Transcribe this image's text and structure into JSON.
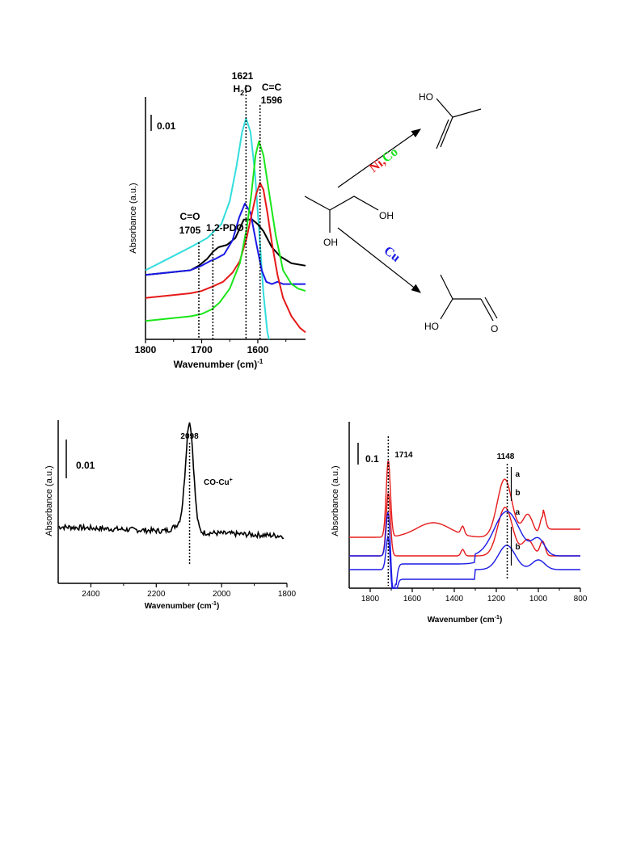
{
  "chart_data": [
    {
      "type": "line",
      "xlabel": "Wavenumber (cm)",
      "xlabel_sup": "-1",
      "ylabel": "Absorbance (a.u.)",
      "xlim": [
        1800,
        1515
      ],
      "xticks": [
        "1800",
        "1700",
        "1600"
      ],
      "scale_bar": "0.01",
      "annotations": [
        {
          "x": 1705,
          "line1": "C=O",
          "line2": "1705"
        },
        {
          "x": 1680,
          "line1": "1,2-PDO",
          "line2": ""
        },
        {
          "x": 1621,
          "line1": "1621",
          "line2": "H",
          "sub": "2",
          "tail": "O"
        },
        {
          "x": 1596,
          "line1": "C=C",
          "line2": "1596"
        }
      ],
      "series": [
        {
          "color": "#33dddd",
          "x": [
            1800,
            1760,
            1720,
            1690,
            1665,
            1650,
            1638,
            1628,
            1621,
            1613,
            1605,
            1597,
            1590,
            1583,
            1580
          ],
          "y": [
            0.3,
            0.35,
            0.4,
            0.44,
            0.5,
            0.6,
            0.75,
            0.9,
            0.96,
            0.9,
            0.72,
            0.45,
            0.2,
            0.03,
            0.0
          ]
        },
        {
          "color": "#000000",
          "x": [
            1800,
            1760,
            1720,
            1705,
            1690,
            1680,
            1670,
            1655,
            1640,
            1625,
            1610,
            1600,
            1590,
            1575,
            1560,
            1540,
            1515
          ],
          "y": [
            0.28,
            0.29,
            0.3,
            0.32,
            0.35,
            0.38,
            0.4,
            0.41,
            0.44,
            0.52,
            0.52,
            0.5,
            0.47,
            0.4,
            0.36,
            0.33,
            0.32
          ]
        },
        {
          "color": "#1a1ae6",
          "x": [
            1800,
            1760,
            1720,
            1700,
            1685,
            1675,
            1660,
            1645,
            1633,
            1623,
            1613,
            1603,
            1593,
            1585,
            1575,
            1565,
            1555,
            1545,
            1530,
            1515
          ],
          "y": [
            0.28,
            0.29,
            0.3,
            0.32,
            0.34,
            0.35,
            0.37,
            0.43,
            0.53,
            0.59,
            0.55,
            0.42,
            0.3,
            0.25,
            0.24,
            0.25,
            0.24,
            0.24,
            0.24,
            0.24
          ]
        },
        {
          "color": "#e61a1a",
          "x": [
            1800,
            1760,
            1720,
            1700,
            1680,
            1662,
            1645,
            1632,
            1620,
            1612,
            1603,
            1596,
            1590,
            1583,
            1575,
            1565,
            1555,
            1540,
            1525,
            1515
          ],
          "y": [
            0.18,
            0.19,
            0.2,
            0.21,
            0.23,
            0.25,
            0.29,
            0.34,
            0.44,
            0.53,
            0.63,
            0.68,
            0.65,
            0.55,
            0.42,
            0.28,
            0.18,
            0.1,
            0.05,
            0.03
          ]
        },
        {
          "color": "#1ae61a",
          "x": [
            1800,
            1760,
            1720,
            1700,
            1682,
            1668,
            1650,
            1632,
            1620,
            1612,
            1604,
            1598,
            1590,
            1580,
            1568,
            1555,
            1540,
            1528,
            1515
          ],
          "y": [
            0.08,
            0.09,
            0.1,
            0.11,
            0.13,
            0.16,
            0.22,
            0.33,
            0.48,
            0.62,
            0.8,
            0.86,
            0.8,
            0.64,
            0.45,
            0.3,
            0.24,
            0.22,
            0.21
          ]
        }
      ]
    },
    {
      "type": "line",
      "xlabel": "Wavenumber (cm",
      "xlabel_sup": "-1",
      "xlabel_tail": ")",
      "ylabel": "Absorbance (a.u.)",
      "xlim": [
        2500,
        1800
      ],
      "xticks": [
        "2400",
        "2200",
        "2000",
        "1800"
      ],
      "scale_bar": "0.01",
      "annotations": [
        {
          "x": 2098,
          "label": "2098"
        },
        {
          "label": "CO-Cu",
          "sup": "+"
        }
      ],
      "series": [
        {
          "color": "#000000",
          "peak_center": 2098,
          "peak_height": 0.7,
          "peak_width": 12,
          "baseline_start": 0.37,
          "baseline_end": 0.31
        }
      ]
    },
    {
      "type": "line",
      "xlabel": "Wavenumber (cm",
      "xlabel_sup": "-1",
      "xlabel_tail": ")",
      "ylabel": "Absorbance (a.u.)",
      "xlim": [
        1900,
        800
      ],
      "xticks": [
        "1800",
        "1600",
        "1400",
        "1200",
        "1000",
        "800"
      ],
      "scale_bar": "0.1",
      "annotations": [
        {
          "x": 1714,
          "label": "1714"
        },
        {
          "x": 1148,
          "label": "1148"
        },
        {
          "label": "a"
        },
        {
          "label": "b"
        },
        {
          "label": "a"
        },
        {
          "label": "b"
        }
      ],
      "series": [
        {
          "color": "#e61a1a",
          "name": "",
          "profile": "red-a"
        },
        {
          "color": "#e61a1a",
          "name": "",
          "profile": "red-b"
        },
        {
          "color": "#1a1ae6",
          "name": "",
          "profile": "blue-a"
        },
        {
          "color": "#1a1ae6",
          "name": "",
          "profile": "blue-b"
        }
      ]
    }
  ],
  "scheme": {
    "catalyst_top_1": "Ni",
    "catalyst_top_sep": ",",
    "catalyst_top_2": "Co",
    "catalyst_bottom": "Cu",
    "colors": {
      "ni": "#e61a1a",
      "co": "#1ae61a",
      "cu": "#1a1ae6"
    },
    "reactant_oh_1": "OH",
    "reactant_oh_2": "OH",
    "product_top_oh": "HO",
    "product_bottom_ho": "HO",
    "product_bottom_o": "O"
  }
}
